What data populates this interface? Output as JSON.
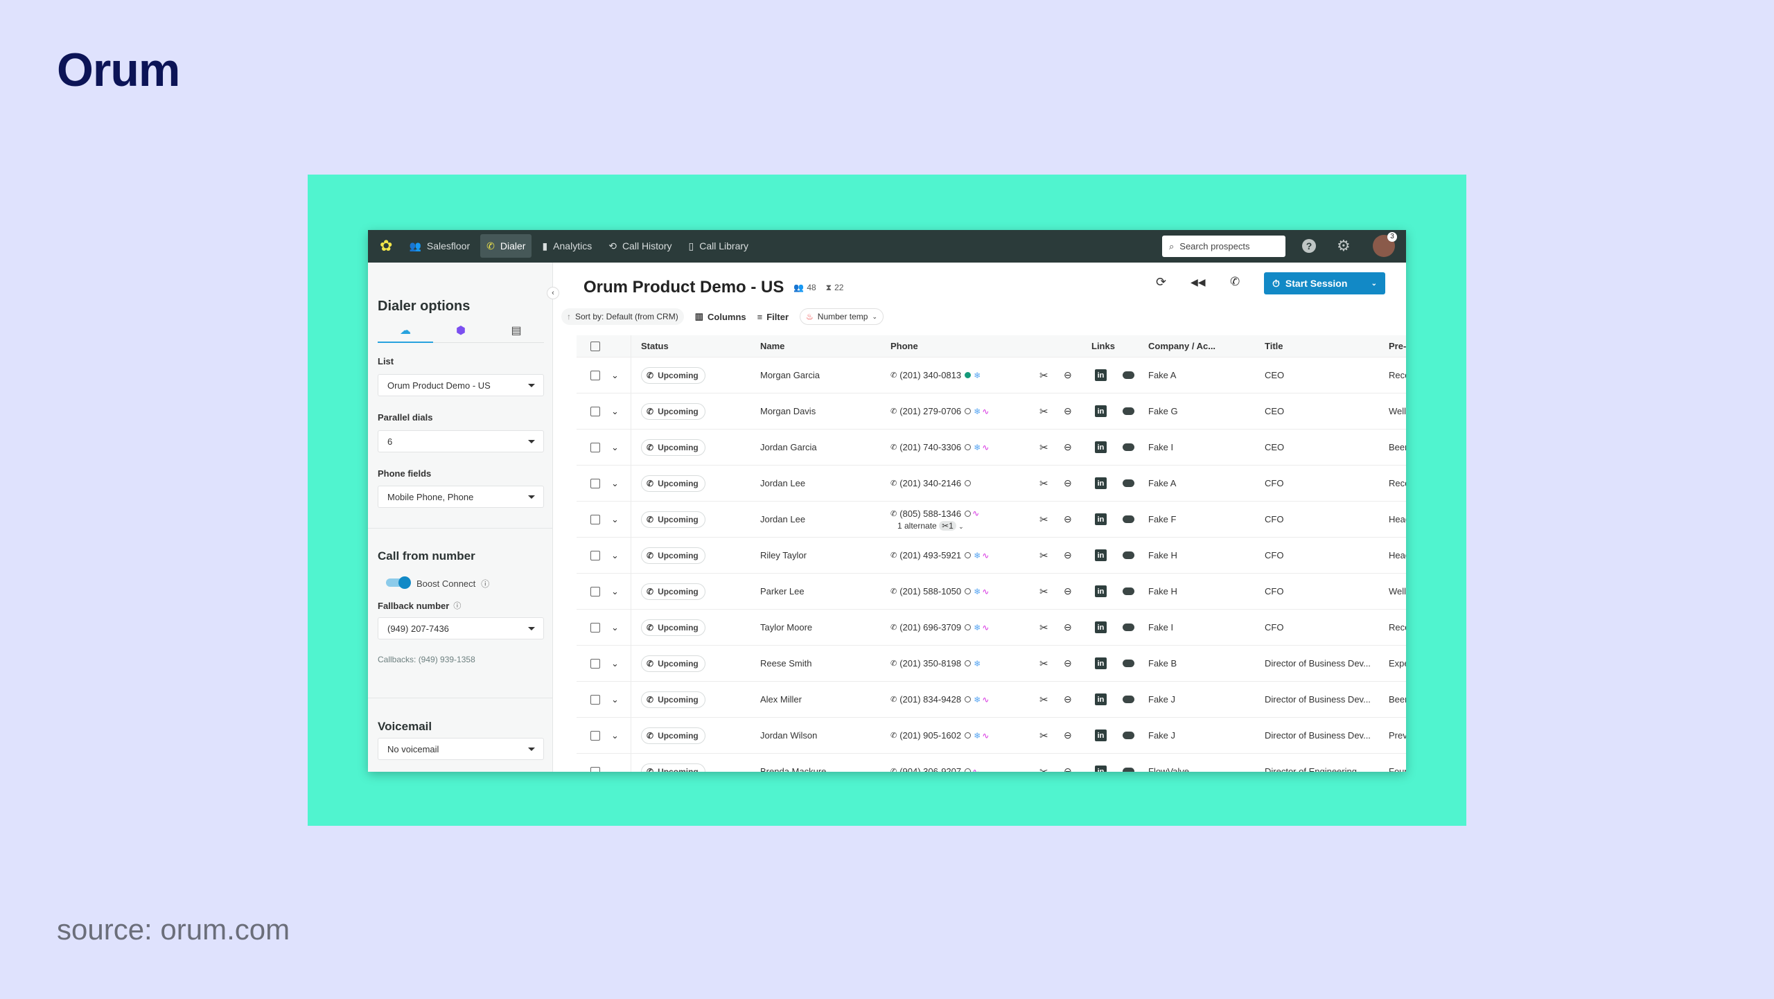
{
  "brand": "Orum",
  "source": "source: orum.com",
  "colors": {
    "background": "#dfe2fd",
    "frame": "#50f4cf",
    "nav": "#2b3b3a",
    "accent": "#1289c6",
    "brand": "#0c1456"
  },
  "nav": {
    "items": [
      {
        "label": "Salesfloor",
        "icon": "people-icon"
      },
      {
        "label": "Dialer",
        "icon": "phone-icon",
        "active": true
      },
      {
        "label": "Analytics",
        "icon": "bar-chart-icon"
      },
      {
        "label": "Call History",
        "icon": "history-icon"
      },
      {
        "label": "Call Library",
        "icon": "book-icon"
      }
    ],
    "search_placeholder": "Search prospects",
    "notification_count": "3"
  },
  "sidebar": {
    "title": "Dialer options",
    "tabs": [
      "salesforce-icon",
      "shield-icon",
      "csv-icon"
    ],
    "list_label": "List",
    "list_value": "Orum Product Demo - US",
    "parallel_label": "Parallel dials",
    "parallel_value": "6",
    "phone_fields_label": "Phone fields",
    "phone_fields_value": "Mobile Phone, Phone",
    "call_from_title": "Call from number",
    "boost_label": "Boost Connect",
    "boost_on": true,
    "fallback_label": "Fallback number",
    "fallback_value": "(949) 207-7436",
    "callbacks": "Callbacks: (949) 939-1358",
    "voicemail_title": "Voicemail",
    "voicemail_value": "No voicemail"
  },
  "main": {
    "title": "Orum Product Demo - US",
    "people_count": "48",
    "dialed_count": "22",
    "sort": "Sort by: Default (from CRM)",
    "columns": "Columns",
    "filter": "Filter",
    "number_temp": "Number temp",
    "start": "Start Session"
  },
  "table": {
    "headers": {
      "status": "Status",
      "name": "Name",
      "phone": "Phone",
      "links": "Links",
      "company": "Company / Ac...",
      "title": "Title",
      "pre": "Pre-c"
    },
    "rows": [
      {
        "status": "Upcoming",
        "name": "Morgan Garcia",
        "phone": "(201) 340-0813",
        "connected": true,
        "snow": true,
        "wave": false,
        "company": "Fake A",
        "title": "CEO",
        "pre": "Recer"
      },
      {
        "status": "Upcoming",
        "name": "Morgan Davis",
        "phone": "(201) 279-0706",
        "snow": true,
        "wave": true,
        "company": "Fake G",
        "title": "CEO",
        "pre": "Well-v"
      },
      {
        "status": "Upcoming",
        "name": "Jordan Garcia",
        "phone": "(201) 740-3306",
        "snow": true,
        "wave": true,
        "company": "Fake I",
        "title": "CEO",
        "pre": "Been"
      },
      {
        "status": "Upcoming",
        "name": "Jordan Lee",
        "phone": "(201) 340-2146",
        "snow": false,
        "wave": false,
        "company": "Fake A",
        "title": "CFO",
        "pre": "Recer"
      },
      {
        "status": "Upcoming",
        "name": "Jordan Lee",
        "phone": "(805) 588-1346",
        "snow": false,
        "wave": true,
        "alternate": "1 alternate",
        "alt_badge": "1",
        "company": "Fake F",
        "title": "CFO",
        "pre": "Headi"
      },
      {
        "status": "Upcoming",
        "name": "Riley Taylor",
        "phone": "(201) 493-5921",
        "snow": true,
        "wave": true,
        "company": "Fake H",
        "title": "CFO",
        "pre": "Headi"
      },
      {
        "status": "Upcoming",
        "name": "Parker Lee",
        "phone": "(201) 588-1050",
        "snow": true,
        "wave": true,
        "company": "Fake H",
        "title": "CFO",
        "pre": "Well-v"
      },
      {
        "status": "Upcoming",
        "name": "Taylor Moore",
        "phone": "(201) 696-3709",
        "snow": true,
        "wave": true,
        "company": "Fake I",
        "title": "CFO",
        "pre": "Recer"
      },
      {
        "status": "Upcoming",
        "name": "Reese Smith",
        "phone": "(201) 350-8198",
        "snow": true,
        "wave": false,
        "company": "Fake B",
        "title": "Director of Business Dev...",
        "pre": "Exper"
      },
      {
        "status": "Upcoming",
        "name": "Alex Miller",
        "phone": "(201) 834-9428",
        "snow": true,
        "wave": true,
        "company": "Fake J",
        "title": "Director of Business Dev...",
        "pre": "Been"
      },
      {
        "status": "Upcoming",
        "name": "Jordan Wilson",
        "phone": "(201) 905-1602",
        "snow": true,
        "wave": true,
        "company": "Fake J",
        "title": "Director of Business Dev...",
        "pre": "Previc"
      },
      {
        "status": "Upcoming",
        "name": "Brenda Mackure",
        "phone": "(904) 306-9207",
        "snow": false,
        "wave": true,
        "company": "FlowValve",
        "title": "Director of Engineering",
        "pre": "Foun"
      }
    ]
  }
}
